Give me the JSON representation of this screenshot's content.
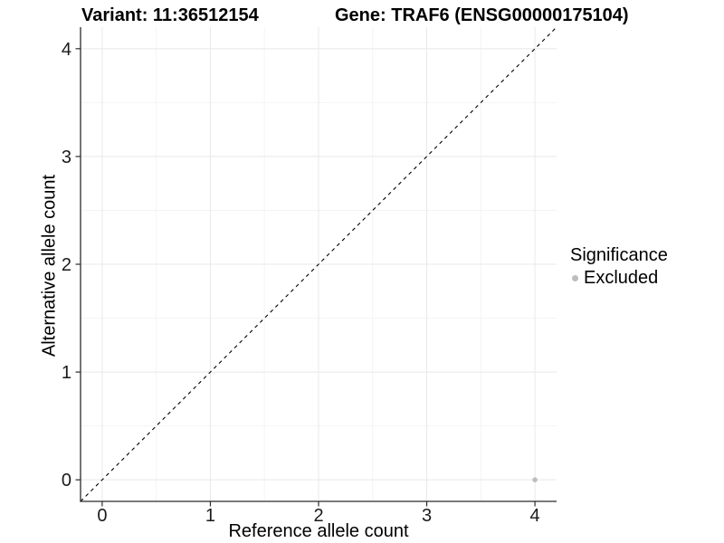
{
  "chart_data": {
    "type": "scatter",
    "titles": {
      "left": "Variant: 11:36512154",
      "right": "Gene: TRAF6 (ENSG00000175104)"
    },
    "xlabel": "Reference allele count",
    "ylabel": "Alternative allele count",
    "xlim": [
      -0.2,
      4.2
    ],
    "ylim": [
      -0.2,
      4.2
    ],
    "x_ticks": [
      0,
      1,
      2,
      3,
      4
    ],
    "y_ticks": [
      0,
      1,
      2,
      3,
      4
    ],
    "grid": {
      "major_x": [
        0,
        1,
        2,
        3,
        4
      ],
      "minor_x": [
        0.5,
        1.5,
        2.5,
        3.5
      ],
      "major_y": [
        0,
        1,
        2,
        3,
        4
      ],
      "minor_y": [
        0.5,
        1.5,
        2.5,
        3.5
      ]
    },
    "reference_line": {
      "kind": "identity",
      "from": [
        -0.2,
        -0.2
      ],
      "to": [
        4.2,
        4.2
      ],
      "style": "dashed",
      "color": "#000000"
    },
    "legend": {
      "title": "Significance",
      "position": "right",
      "items": [
        {
          "label": "Excluded",
          "color": "#bdbdbd"
        }
      ]
    },
    "series": [
      {
        "name": "Excluded",
        "color": "#bdbdbd",
        "points": [
          [
            4,
            0
          ]
        ]
      }
    ]
  },
  "colors": {
    "background": "#ffffff",
    "grid_major": "#e8e8e8",
    "grid_minor": "#f4f4f4",
    "axis_line": "#2b2b2b",
    "tick_mark": "#2b2b2b",
    "tick_text": "#1a1a1a",
    "point_excluded": "#bdbdbd"
  }
}
